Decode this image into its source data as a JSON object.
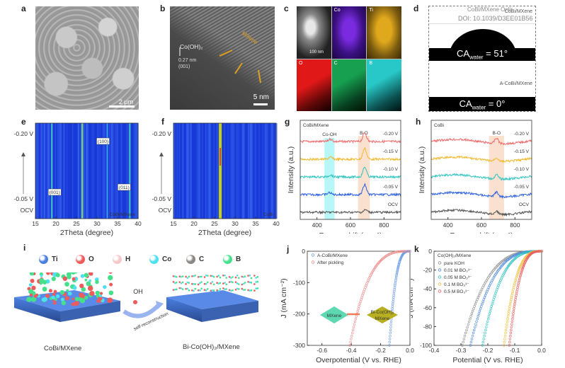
{
  "figure": {
    "watermark": {
      "line1": "CoBi/MXene Onlir",
      "line2": "DOI: 10.1039/D3EE01B56"
    },
    "panels": {
      "a": {
        "label": "a",
        "scalebar": "2 μm"
      },
      "b": {
        "label": "b",
        "annotation_phase": "Co(OH)₂",
        "spacing": "0.27 nm",
        "plane": "(001)",
        "mxene_label": "MXene",
        "scalebar": "5 nm"
      },
      "c": {
        "label": "c",
        "maps": [
          "",
          "Co",
          "Ti",
          "O",
          "C",
          "B"
        ],
        "scalebar": "100 nm",
        "colors": {
          "Co": "#7a2be0",
          "Ti": "#e0a81c",
          "O": "#e01818",
          "C": "#16a050",
          "B": "#28c8c8"
        }
      },
      "d": {
        "label": "d",
        "sample1": "CoBi/MXene",
        "ca1_prefix": "CA",
        "ca1_sub": "water",
        "ca1_value": " = 51°",
        "sample2": "A-CoBi/MXene",
        "ca2_prefix": "CA",
        "ca2_sub": "water",
        "ca2_value": " = 0°"
      },
      "e": {
        "label": "e",
        "sample": "CoBi/MXene",
        "peaks": [
          "(001)",
          "(100)",
          "(011)"
        ]
      },
      "f": {
        "label": "f",
        "sample": "CoBi"
      },
      "g": {
        "label": "g",
        "sample": "CoBi/MXene",
        "band1": "Co-OH",
        "band2": "B-O"
      },
      "h": {
        "label": "h",
        "sample": "CoBi",
        "band": "B-O"
      },
      "i": {
        "label": "i",
        "legend": [
          "Ti",
          "O",
          "H",
          "Co",
          "C",
          "B"
        ],
        "legend_colors": [
          "#4a7fe0",
          "#ef5a5a",
          "#f7c8c8",
          "#4fe0f0",
          "#8a8683",
          "#46e08c"
        ],
        "left_caption": "CoBi/MXene",
        "right_caption": "Bi-Co(OH)₂/MXene",
        "arrow_top": "OH",
        "arrow_label": "self-reconstruction"
      },
      "j": {
        "label": "j",
        "inset_left": "MXene",
        "inset_right_l1": "Bi-Co(OH)₂",
        "inset_right_l2": "MXene"
      },
      "k": {
        "label": "k",
        "legend_title": "Co(OH)₂/MXene"
      }
    }
  },
  "chart_data": [
    {
      "id": "e",
      "type": "heatmap",
      "title": "",
      "xlabel": "2Theta (degree)",
      "ylabel": "",
      "xlim": [
        15,
        40
      ],
      "xticks": [
        15,
        20,
        25,
        30,
        35,
        40
      ],
      "ytick_labels": [
        "-0.20 V",
        "-0.05 V",
        "OCV"
      ],
      "features": [
        {
          "two_theta": 19.0,
          "intensity": "medium",
          "label": "(001)"
        },
        {
          "two_theta": 26.4,
          "intensity": "high",
          "label": ""
        },
        {
          "two_theta": 32.5,
          "intensity": "low",
          "label": "(100)"
        },
        {
          "two_theta": 38.0,
          "intensity": "medium",
          "label": "(011)"
        }
      ],
      "annotation": "CoBi/MXene"
    },
    {
      "id": "f",
      "type": "heatmap",
      "title": "",
      "xlabel": "2Theta (degree)",
      "ylabel": "",
      "xlim": [
        15,
        40
      ],
      "xticks": [
        15,
        20,
        25,
        30,
        35,
        40
      ],
      "ytick_labels": [
        "-0.20 V",
        "-0.05 V",
        "OCV"
      ],
      "features": [
        {
          "two_theta": 26.4,
          "intensity": "very high",
          "label": ""
        }
      ],
      "annotation": "CoBi"
    },
    {
      "id": "g",
      "type": "line",
      "xlabel": "Raman shift (cm⁻¹)",
      "ylabel": "Intensity (a.u.)",
      "xlim": [
        300,
        900
      ],
      "xticks": [
        400,
        600,
        800
      ],
      "bands": [
        {
          "label": "Co-OH",
          "range": [
            445,
            505
          ],
          "color": "#7ef0f0"
        },
        {
          "label": "B-O",
          "range": [
            645,
            715
          ],
          "color": "#f6c9a8"
        }
      ],
      "series": [
        {
          "name": "-0.20 V",
          "color": "#f06a6a",
          "offset": 4,
          "peaks": [
            {
              "x": 685,
              "h": 0.9
            },
            {
              "x": 480,
              "h": 0.25
            }
          ]
        },
        {
          "name": "-0.15 V",
          "color": "#f2b82a",
          "offset": 3,
          "peaks": [
            {
              "x": 685,
              "h": 1.1
            },
            {
              "x": 480,
              "h": 0.2
            }
          ]
        },
        {
          "name": "-0.10 V",
          "color": "#2ec4c0",
          "offset": 2,
          "peaks": [
            {
              "x": 685,
              "h": 1.0
            },
            {
              "x": 480,
              "h": 0.2
            }
          ]
        },
        {
          "name": "-0.05 V",
          "color": "#2a5fe0",
          "offset": 1,
          "peaks": [
            {
              "x": 685,
              "h": 1.0
            },
            {
              "x": 475,
              "h": 0.2
            }
          ]
        },
        {
          "name": "OCV",
          "color": "#555555",
          "offset": 0,
          "peaks": [
            {
              "x": 690,
              "h": 0.25
            }
          ]
        }
      ]
    },
    {
      "id": "h",
      "type": "line",
      "xlabel": "Raman shift (cm⁻¹)",
      "ylabel": "Intensity (a.u.)",
      "xlim": [
        300,
        900
      ],
      "xticks": [
        400,
        600,
        800
      ],
      "bands": [
        {
          "label": "B-O",
          "range": [
            645,
            735
          ],
          "color": "#f6c9a8"
        }
      ],
      "series": [
        {
          "name": "-0.20 V",
          "color": "#f06a6a",
          "offset": 4,
          "peaks": [
            {
              "x": 690,
              "h": 0.55
            }
          ]
        },
        {
          "name": "-0.15 V",
          "color": "#f2b82a",
          "offset": 3,
          "peaks": [
            {
              "x": 690,
              "h": 0.35
            }
          ]
        },
        {
          "name": "-0.10 V",
          "color": "#2ec4c0",
          "offset": 2,
          "peaks": [
            {
              "x": 690,
              "h": 0.4
            }
          ]
        },
        {
          "name": "-0.05 V",
          "color": "#2a5fe0",
          "offset": 1,
          "peaks": [
            {
              "x": 690,
              "h": 0.45
            }
          ]
        },
        {
          "name": "OCV",
          "color": "#555555",
          "offset": 0,
          "peaks": [
            {
              "x": 690,
              "h": 0.3
            }
          ]
        }
      ]
    },
    {
      "id": "j",
      "type": "scatter",
      "xlabel": "Overpotential (V vs. RHE)",
      "ylabel": "J (mA cm⁻²)",
      "xlim": [
        -0.7,
        0.0
      ],
      "ylim": [
        -300,
        0
      ],
      "xticks": [
        -0.6,
        -0.4,
        -0.2,
        0.0
      ],
      "yticks": [
        0,
        -100,
        -200,
        -300
      ],
      "series": [
        {
          "name": "A-CoBi/MXene",
          "color": "#6f9fe8",
          "onset": -0.03,
          "v_at_min": -0.14
        },
        {
          "name": "After pickling",
          "color": "#ec8b8b",
          "onset": -0.25,
          "v_at_min": -0.41
        }
      ]
    },
    {
      "id": "k",
      "type": "scatter",
      "xlabel": "Potential (V vs. RHE)",
      "ylabel": "J (mA cm⁻²)",
      "xlim": [
        -0.4,
        0.0
      ],
      "ylim": [
        -100,
        0
      ],
      "xticks": [
        -0.4,
        -0.3,
        -0.2,
        -0.1,
        0.0
      ],
      "yticks": [
        0,
        -20,
        -40,
        -60,
        -80,
        -100
      ],
      "legend_title": "Co(OH)₂/MXene",
      "series": [
        {
          "name": "pure KOH",
          "color": "#8c8c8c",
          "v_at_min": -0.295
        },
        {
          "name": "0.01 M BO₃³⁻",
          "color": "#4a86e0",
          "v_at_min": -0.265
        },
        {
          "name": "0.05 M BO₃³⁻",
          "color": "#2ec4c0",
          "v_at_min": -0.22
        },
        {
          "name": "0.1 M BO₃³⁻",
          "color": "#f2c040",
          "v_at_min": -0.14
        },
        {
          "name": "0.5 M BO₃³⁻",
          "color": "#e86060",
          "v_at_min": -0.12
        }
      ]
    }
  ]
}
